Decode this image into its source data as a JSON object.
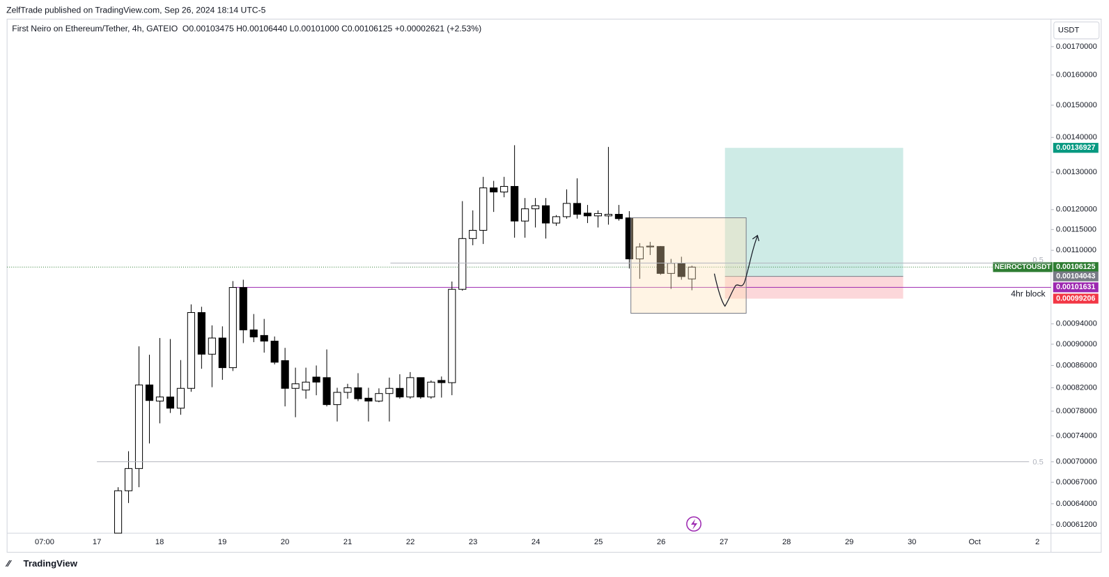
{
  "header": "ZelfTrade published on TradingView.com, Sep 26, 2024 18:14 UTC-5",
  "footer": "TradingView",
  "chart_data": {
    "type": "candlestick",
    "title": "First Neiro on Ethereum/Tether, 4h, GATEIO",
    "ohlc_legend": "O0.00103475 H0.00106440 L0.00101000 C0.00106125 +0.00002621 (+2.53%)",
    "currency": "USDT",
    "symbol": "NEIROCTOUSDT",
    "log_scale": true,
    "ylim": [
      0.000601,
      0.001803
    ],
    "yticks": [
      {
        "value": 0.0017,
        "label": "0.00170000"
      },
      {
        "value": 0.0016,
        "label": "0.00160000"
      },
      {
        "value": 0.0015,
        "label": "0.00150000"
      },
      {
        "value": 0.0014,
        "label": "0.00140000"
      },
      {
        "value": 0.0013,
        "label": "0.00130000"
      },
      {
        "value": 0.0012,
        "label": "0.00120000"
      },
      {
        "value": 0.00115,
        "label": "0.00115000"
      },
      {
        "value": 0.0011,
        "label": "0.00110000"
      },
      {
        "value": 0.00094,
        "label": "0.00094000"
      },
      {
        "value": 0.0009,
        "label": "0.00090000"
      },
      {
        "value": 0.00086,
        "label": "0.00086000"
      },
      {
        "value": 0.00082,
        "label": "0.00082000"
      },
      {
        "value": 0.00078,
        "label": "0.00078000"
      },
      {
        "value": 0.00074,
        "label": "0.00074000"
      },
      {
        "value": 0.0007,
        "label": "0.00070000"
      },
      {
        "value": 0.00067,
        "label": "0.00067000"
      },
      {
        "value": 0.00064,
        "label": "0.00064000"
      },
      {
        "value": 0.000612,
        "label": "0.00061200"
      }
    ],
    "x_labels": [
      "07:00",
      "17",
      "18",
      "19",
      "20",
      "21",
      "22",
      "23",
      "24",
      "25",
      "26",
      "27",
      "28",
      "29",
      "30",
      "Oct",
      "2"
    ],
    "open": [
      0.000598,
      0.000658,
      0.00069,
      0.000825,
      0.000797,
      0.000804,
      0.000785,
      0.000819,
      0.000963,
      0.000881,
      0.000912,
      0.000856,
      0.001016,
      0.000928,
      0.000917,
      0.000906,
      0.000869,
      0.000819,
      0.000816,
      0.000839,
      0.000838,
      0.000791,
      0.000812,
      0.00082,
      0.000802,
      0.000797,
      0.00081,
      0.000819,
      0.000804,
      0.000838,
      0.000804,
      0.000833,
      0.000829,
      0.001012,
      0.001128,
      0.001148,
      0.001257,
      0.001246,
      0.001261,
      0.001171,
      0.001202,
      0.00121,
      0.001166,
      0.001182,
      0.001216,
      0.001191,
      0.001184,
      0.001184,
      0.001188,
      0.001179,
      0.00108,
      0.001108,
      0.001109,
      0.001047,
      0.00107,
      0.00103475
    ],
    "high": [
      0.000663,
      0.000716,
      0.000896,
      0.00088,
      0.000912,
      0.00091,
      0.00087,
      0.00098,
      0.000975,
      0.000937,
      0.000935,
      0.00103,
      0.001033,
      0.00096,
      0.00095,
      0.000915,
      0.000893,
      0.000856,
      0.000856,
      0.00086,
      0.00089,
      0.00082,
      0.000827,
      0.000846,
      0.00082,
      0.000819,
      0.000838,
      0.000844,
      0.000848,
      0.000838,
      0.000833,
      0.00084,
      0.001029,
      0.001222,
      0.001198,
      0.001287,
      0.001276,
      0.001287,
      0.001377,
      0.00123,
      0.00123,
      0.00123,
      0.001186,
      0.001253,
      0.001283,
      0.001212,
      0.001198,
      0.001372,
      0.001212,
      0.001196,
      0.001117,
      0.00112,
      0.00111,
      0.00108,
      0.001085,
      0.0010644
    ],
    "low": [
      0.00059,
      0.000641,
      0.000663,
      0.000728,
      0.00076,
      0.000777,
      0.000774,
      0.000813,
      0.000854,
      0.000821,
      0.000834,
      0.00085,
      0.000902,
      0.000904,
      0.000884,
      0.000862,
      0.000788,
      0.00077,
      0.000801,
      0.000807,
      0.000788,
      0.000763,
      0.000801,
      0.000797,
      0.000763,
      0.000795,
      0.000763,
      0.000801,
      0.000801,
      0.000801,
      0.000801,
      0.000803,
      0.000807,
      0.001009,
      0.001112,
      0.001115,
      0.001194,
      0.001232,
      0.00113,
      0.00113,
      0.001155,
      0.001128,
      0.001159,
      0.001177,
      0.001177,
      0.001166,
      0.001155,
      0.001162,
      0.001172,
      0.001058,
      0.001035,
      0.001089,
      0.001044,
      0.001013,
      0.001033,
      0.00101
    ],
    "close": [
      0.000658,
      0.00069,
      0.000825,
      0.000798,
      0.000804,
      0.000785,
      0.000819,
      0.000963,
      0.000881,
      0.000912,
      0.000856,
      0.001016,
      0.000928,
      0.000914,
      0.000906,
      0.000866,
      0.000819,
      0.000827,
      0.00083,
      0.00083,
      0.000791,
      0.000812,
      0.00082,
      0.000801,
      0.000797,
      0.00081,
      0.000819,
      0.000804,
      0.000838,
      0.000804,
      0.00083,
      0.000829,
      0.001012,
      0.001128,
      0.001148,
      0.001257,
      0.001246,
      0.001261,
      0.001171,
      0.001202,
      0.00121,
      0.001166,
      0.001182,
      0.001216,
      0.001188,
      0.001184,
      0.00119,
      0.001188,
      0.001177,
      0.00108,
      0.001108,
      0.00111,
      0.001047,
      0.00107,
      0.00104,
      0.00106125
    ],
    "up_color": "#ffffff",
    "down_color": "#000000",
    "last_price": 0.00106125,
    "last_price_color": "#2e7d32",
    "target": 0.00136927,
    "target_color": "#089981",
    "entry": 0.00104043,
    "entry_color": "#787b86",
    "block": 0.00101631,
    "block_color": "#9c27b0",
    "stop": 0.00099206,
    "stop_color": "#f23645",
    "block_label": "4hr block",
    "fib_labels": [
      "0.5",
      "0.5"
    ]
  }
}
